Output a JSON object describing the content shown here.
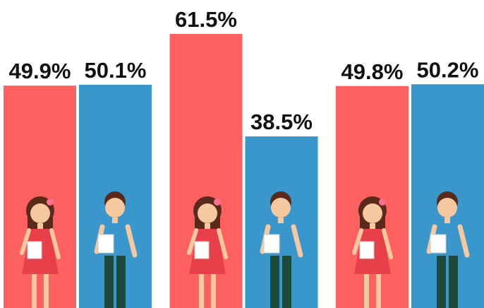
{
  "chart_data": {
    "type": "bar",
    "categories": [
      null,
      null,
      null
    ],
    "series": [
      {
        "color": "#ff6060",
        "values": [
          49.9,
          61.5,
          49.8
        ],
        "value_labels": [
          "49.9%",
          "61.5%",
          "49.8%"
        ]
      },
      {
        "color": "#3a97cc",
        "values": [
          50.1,
          38.5,
          50.2
        ],
        "value_labels": [
          "50.1%",
          "38.5%",
          "50.2%"
        ]
      }
    ]
  }
}
